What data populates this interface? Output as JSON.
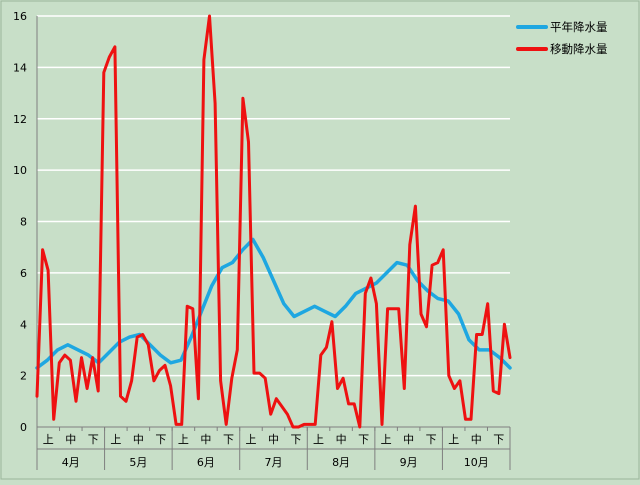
{
  "chart_data": {
    "type": "line",
    "title": "",
    "xlabel": "",
    "ylabel": "",
    "ylim": [
      0,
      16
    ],
    "y_ticks": [
      0,
      2,
      4,
      6,
      8,
      10,
      12,
      14,
      16
    ],
    "grid": true,
    "legend_position": "top-right",
    "months": [
      "4月",
      "5月",
      "6月",
      "7月",
      "8月",
      "9月",
      "10月"
    ],
    "sub_periods": [
      "上",
      "中",
      "下"
    ],
    "series": [
      {
        "name": "平年降水量",
        "color": "#1ea7e1",
        "values": [
          2.3,
          2.6,
          3.0,
          3.2,
          3.0,
          2.8,
          2.5,
          2.9,
          3.3,
          3.5,
          3.6,
          3.2,
          2.8,
          2.5,
          2.6,
          3.5,
          4.5,
          5.5,
          6.2,
          6.4,
          6.9,
          7.3,
          6.6,
          5.7,
          4.8,
          4.3,
          4.5,
          4.7,
          4.5,
          4.3,
          4.7,
          5.2,
          5.4,
          5.6,
          6.0,
          6.4,
          6.3,
          5.7,
          5.3,
          5.0,
          4.9,
          4.4,
          3.4,
          3.0,
          3.0,
          2.7,
          2.3
        ]
      },
      {
        "name": "移動降水量",
        "color": "#ee1111",
        "values": [
          1.2,
          6.9,
          6.1,
          0.3,
          2.5,
          2.8,
          2.6,
          1.0,
          2.7,
          1.5,
          2.7,
          1.4,
          13.8,
          14.4,
          14.8,
          1.2,
          1.0,
          1.8,
          3.5,
          3.6,
          3.2,
          1.8,
          2.2,
          2.4,
          1.6,
          0.1,
          0.1,
          4.7,
          4.6,
          1.1,
          14.3,
          16.0,
          12.6,
          1.8,
          0.1,
          1.9,
          3.0,
          12.8,
          11.1,
          2.1,
          2.1,
          1.9,
          0.5,
          1.1,
          0.8,
          0.5,
          0.0,
          0.0,
          0.1,
          0.1,
          0.1,
          2.8,
          3.1,
          4.1,
          1.5,
          1.9,
          0.9,
          0.9,
          0.0,
          5.2,
          5.8,
          4.8,
          0.1,
          4.6,
          4.6,
          4.6,
          1.5,
          7.1,
          8.6,
          4.4,
          3.9,
          6.3,
          6.4,
          6.9,
          2.0,
          1.5,
          1.8,
          0.3,
          0.3,
          3.6,
          3.6,
          4.8,
          1.4,
          1.3,
          4.0,
          2.7
        ]
      }
    ]
  }
}
